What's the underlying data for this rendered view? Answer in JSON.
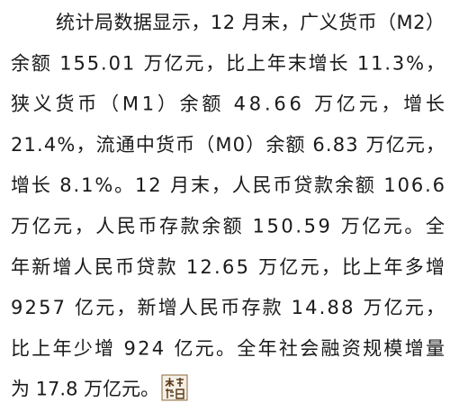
{
  "document": {
    "lines": [
      "统计局数据显示，12 月末，广义货币（M2）",
      "余额 155.01 万亿元，比上年末增长 11.3%，",
      "狭义货币（M1）余额 48.66 万亿元，增长",
      "21.4%，流通中货币（M0）余额 6.83 万亿元，",
      "增长 8.1%。12 月末，人民币贷款余额 106.6",
      "万亿元，人民币存款余额 150.59 万亿元。全",
      "年新增人民币贷款 12.65 万亿元，比上年多增",
      "9257 亿元，新增人民币存款 14.88 万亿元，",
      "比上年少增 924 亿元。全年社会融资规模增量",
      "为 17.8 万亿元。"
    ]
  }
}
